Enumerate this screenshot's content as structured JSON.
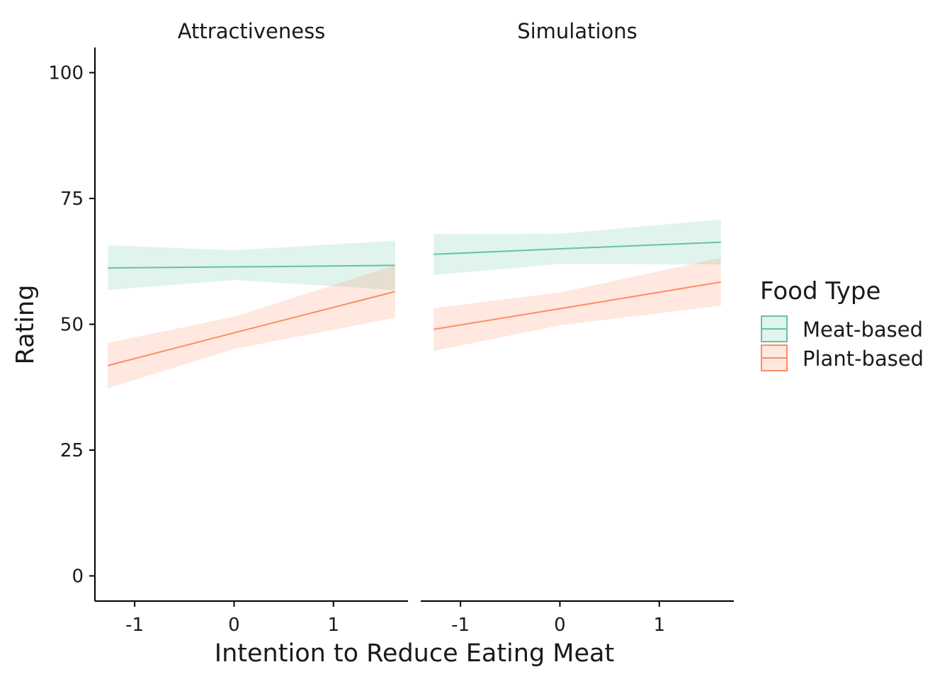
{
  "chart_data": {
    "type": "line",
    "xlabel": "Intention to Reduce Eating Meat",
    "ylabel": "Rating",
    "ylim": [
      -5,
      105
    ],
    "yticks": [
      0,
      25,
      50,
      75,
      100
    ],
    "xlim": [
      -1.4,
      1.75
    ],
    "xticks": [
      -1,
      0,
      1
    ],
    "xtick_labels": [
      "-1",
      "0",
      "1"
    ],
    "legend": {
      "title": "Food Type",
      "position": "right",
      "entries": [
        {
          "name": "Meat-based",
          "color": "#66c2a5"
        },
        {
          "name": "Plant-based",
          "color": "#fc8d62"
        }
      ]
    },
    "panels": [
      {
        "title": "Attractiveness",
        "series": [
          {
            "name": "Meat-based",
            "color": "#66c2a5",
            "x": [
              -1.27,
              0,
              1.62
            ],
            "y": [
              61.2,
              61.4,
              61.7
            ],
            "lower": [
              56.8,
              58.8,
              56.8
            ],
            "upper": [
              65.7,
              64.7,
              66.6
            ]
          },
          {
            "name": "Plant-based",
            "color": "#fc8d62",
            "x": [
              -1.27,
              0,
              1.62
            ],
            "y": [
              41.8,
              48.3,
              56.5
            ],
            "lower": [
              37.3,
              45.1,
              51.3
            ],
            "upper": [
              46.3,
              51.5,
              61.7
            ]
          }
        ]
      },
      {
        "title": "Simulations",
        "series": [
          {
            "name": "Meat-based",
            "color": "#66c2a5",
            "x": [
              -1.27,
              0,
              1.62
            ],
            "y": [
              63.9,
              65.0,
              66.3
            ],
            "lower": [
              59.8,
              62.0,
              61.9
            ],
            "upper": [
              67.9,
              68.0,
              70.8
            ]
          },
          {
            "name": "Plant-based",
            "color": "#fc8d62",
            "x": [
              -1.27,
              0,
              1.62
            ],
            "y": [
              49.0,
              53.1,
              58.4
            ],
            "lower": [
              44.7,
              49.8,
              53.7
            ],
            "upper": [
              53.2,
              56.3,
              63.2
            ]
          }
        ]
      }
    ]
  }
}
